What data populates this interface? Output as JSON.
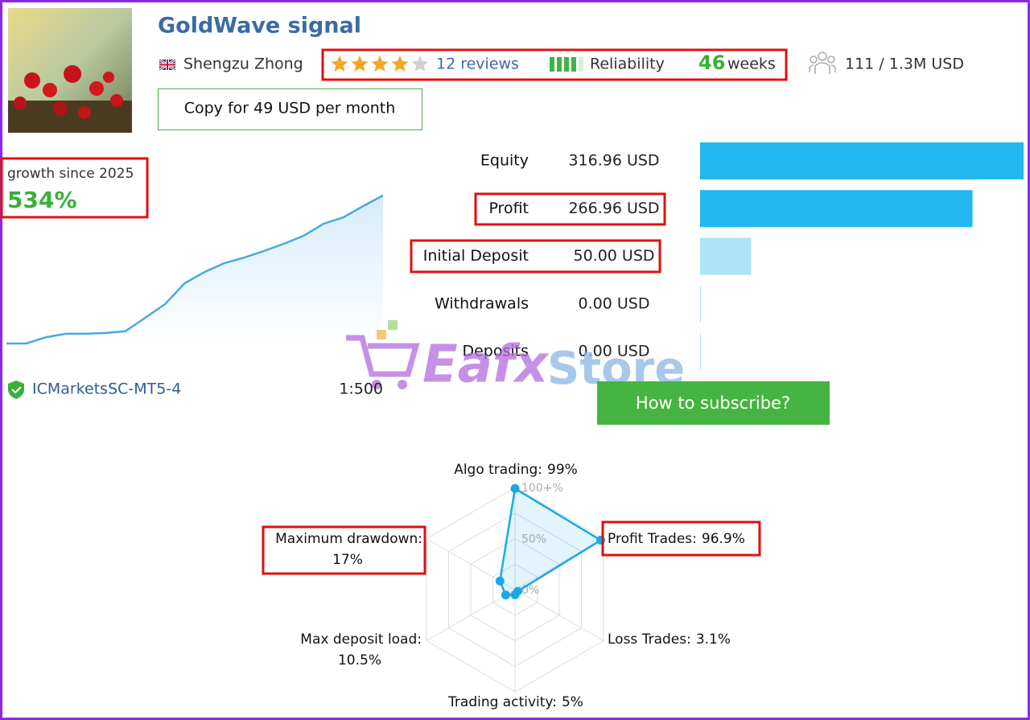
{
  "header": {
    "title": "GoldWave signal",
    "author": "Shengzu Zhong",
    "rating": 4,
    "reviews": "12 reviews",
    "reliability": "Reliability",
    "weeks_value": "46",
    "weeks_unit": "weeks",
    "subscribers": "111 / 1.3M USD",
    "copy_button": "Copy for 49 USD per month"
  },
  "stats": {
    "rows": [
      {
        "label": "Equity",
        "value": 316.96,
        "value_label": "316.96 USD",
        "color": "#22b8ef"
      },
      {
        "label": "Profit",
        "value": 266.96,
        "value_label": "266.96 USD",
        "color": "#22b8ef"
      },
      {
        "label": "Initial Deposit",
        "value": 50.0,
        "value_label": "50.00 USD",
        "color": "#aee4f7"
      },
      {
        "label": "Withdrawals",
        "value": 0.0,
        "value_label": "0.00 USD",
        "color": "#aee4f7"
      },
      {
        "label": "Deposits",
        "value": 0.0,
        "value_label": "0.00 USD",
        "color": "#aee4f7"
      }
    ]
  },
  "broker": "ICMarketsSC-MT5-4",
  "leverage": "1:500",
  "subscribe_button": "How to subscribe?",
  "watermark": {
    "brand": "Eafx",
    "suffix": "Store"
  },
  "chart_data": [
    {
      "type": "line",
      "title": "growth since 2025",
      "value": 534,
      "value_label": "534%",
      "color": "#4aa8dd",
      "values": [
        0,
        0,
        23,
        35,
        35,
        38,
        44,
        93,
        142,
        218,
        258,
        290,
        310,
        334,
        360,
        389,
        432,
        455,
        496,
        534
      ]
    },
    {
      "type": "radar",
      "color": "#1ba9e6",
      "axes": [
        {
          "label": "Algo trading:",
          "value": 99,
          "value_label": "99%"
        },
        {
          "label": "Profit Trades:",
          "value": 96.9,
          "value_label": "96.9%"
        },
        {
          "label": "Loss Trades:",
          "value": 3.1,
          "value_label": "3.1%"
        },
        {
          "label": "Trading activity:",
          "value": 5,
          "value_label": "5%"
        },
        {
          "label": "Max deposit load:",
          "value": 10.5,
          "value_label": "10.5%"
        },
        {
          "label": "Maximum drawdown:",
          "value": 17,
          "value_label": "17%"
        }
      ],
      "ticks": [
        {
          "value": 100,
          "label": "100+%"
        },
        {
          "value": 50,
          "label": "50%"
        },
        {
          "value": 0,
          "label": "0%"
        }
      ]
    }
  ]
}
